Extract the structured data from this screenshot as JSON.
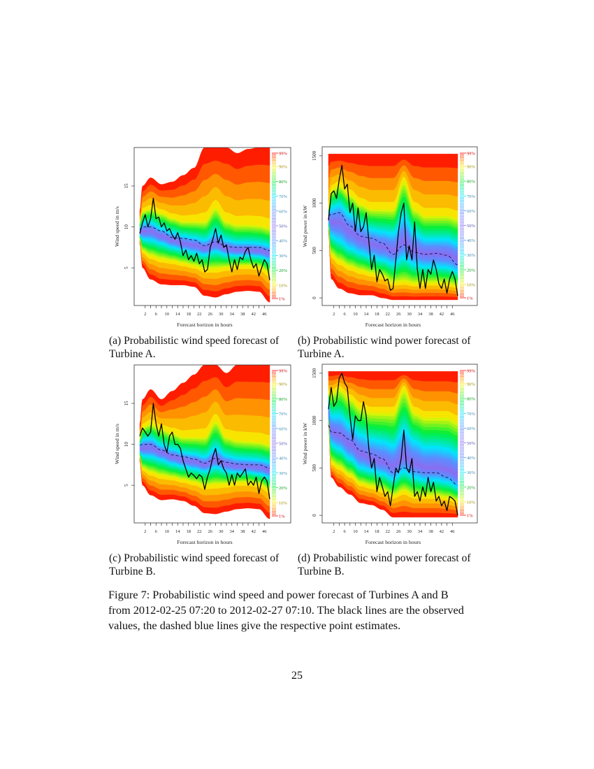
{
  "subcaptions": [
    {
      "line1": "(a) Probabilistic wind speed forecast of",
      "line2": "Turbine A."
    },
    {
      "line1": "(b) Probabilistic wind power forecast of",
      "line2": "Turbine A."
    },
    {
      "line1": "(c) Probabilistic wind speed forecast of",
      "line2": "Turbine B."
    },
    {
      "line1": "(d) Probabilistic wind power forecast of",
      "line2": "Turbine B."
    }
  ],
  "figure_caption": {
    "line1": "Figure 7: Probabilistic wind speed and power forecast of Turbines A and B",
    "line2": "from 2012-02-25 07:20 to 2012-02-27 07:10. The black lines are the observed",
    "line3": "values, the dashed blue lines give the respective point estimates."
  },
  "page_number": "25",
  "colors": {
    "observed": "#000000",
    "point_estimate": "#1a1a55",
    "outer_quantile": "#ff0000",
    "median_quantile": "#8a6cf0"
  },
  "chart_data": [
    {
      "type": "area",
      "xlabel": "Forecast horizon in hours",
      "ylabel": "Wind speed in m/s",
      "xlim": [
        0,
        48
      ],
      "ylim": [
        0.4,
        19.7
      ],
      "xtick_labels": [
        "2",
        "6",
        "10",
        "14",
        "18",
        "22",
        "26",
        "30",
        "34",
        "38",
        "42",
        "46"
      ],
      "ytick_labels": [
        "5",
        "10",
        "15"
      ],
      "legend_labels": [
        "99%",
        "90%",
        "80%",
        "70%",
        "60%",
        "50%",
        "40%",
        "30%",
        "20%",
        "10%",
        "1%"
      ],
      "quantile_levels": [
        0.01,
        0.1,
        0.3,
        0.5,
        0.7,
        0.9,
        0.99
      ],
      "quantile_x": [
        0,
        1,
        4,
        8,
        12,
        16,
        20,
        24,
        28,
        32,
        36,
        40,
        44,
        48
      ],
      "quantiles": [
        [
          8.0,
          5.0,
          3.6,
          3.0,
          2.9,
          2.9,
          2.7,
          1.6,
          1.4,
          1.8,
          2.1,
          2.2,
          2.1,
          0.8
        ],
        [
          8.6,
          7.0,
          6.4,
          6.0,
          5.8,
          5.5,
          5.2,
          4.8,
          4.8,
          5.0,
          5.2,
          5.2,
          5.1,
          4.3
        ],
        [
          9.0,
          8.5,
          8.4,
          8.0,
          7.5,
          7.2,
          6.9,
          6.6,
          7.0,
          6.6,
          6.5,
          6.5,
          6.4,
          6.0
        ],
        [
          9.3,
          9.5,
          9.5,
          8.9,
          8.4,
          8.0,
          7.8,
          7.4,
          7.9,
          7.4,
          7.2,
          7.2,
          7.1,
          6.8
        ],
        [
          9.8,
          10.5,
          10.5,
          9.8,
          9.3,
          8.9,
          8.7,
          8.4,
          9.2,
          8.4,
          8.1,
          8.1,
          8.0,
          7.7
        ],
        [
          10.6,
          12.0,
          12.3,
          11.8,
          11.2,
          10.8,
          10.8,
          10.8,
          12.5,
          10.8,
          10.4,
          10.4,
          10.3,
          10.0
        ],
        [
          12.0,
          15.0,
          16.0,
          15.2,
          15.5,
          16.3,
          17.2,
          19.7,
          19.7,
          19.7,
          19.0,
          19.5,
          19.7,
          19.7
        ]
      ],
      "point_estimate": [
        9.7,
        10.0,
        10.0,
        9.5,
        8.7,
        8.6,
        8.4,
        7.7,
        8.2,
        7.6,
        7.5,
        7.5,
        7.5,
        7.1
      ],
      "observed": [
        9.2,
        10.5,
        11.5,
        10,
        11,
        13.5,
        11,
        11.2,
        10,
        10.5,
        9.5,
        9.8,
        9,
        8.5,
        9.3,
        8.2,
        6.5,
        7.2,
        6.0,
        6.5,
        5.8,
        6.8,
        5.5,
        6.0,
        4.5,
        4.8,
        7.5,
        8.5,
        9.8,
        8.0,
        9.0,
        7.5,
        7.8,
        6.0,
        4.5,
        6.0,
        4.8,
        6.3,
        6.0,
        7.0,
        7.5,
        6.0,
        5.0,
        5.5,
        4.0,
        5.0,
        6.0,
        5.5,
        3.5
      ]
    },
    {
      "type": "area",
      "xlabel": "Forecast horizon in hours",
      "ylabel": "Wind power in kW",
      "xlim": [
        0,
        48
      ],
      "ylim": [
        -80,
        1595
      ],
      "xtick_labels": [
        "2",
        "6",
        "10",
        "14",
        "18",
        "22",
        "26",
        "30",
        "34",
        "38",
        "42",
        "46"
      ],
      "ytick_labels": [
        "0",
        "500",
        "1000",
        "1500"
      ],
      "legend_labels": [
        "99%",
        "90%",
        "80%",
        "70%",
        "60%",
        "50%",
        "40%",
        "30%",
        "20%",
        "10%",
        "1%"
      ],
      "quantile_levels": [
        0.01,
        0.1,
        0.3,
        0.5,
        0.7,
        0.9,
        0.99
      ],
      "quantile_x": [
        0,
        1,
        4,
        8,
        12,
        16,
        20,
        24,
        28,
        32,
        36,
        40,
        44,
        48
      ],
      "quantiles": [
        [
          700,
          200,
          100,
          50,
          30,
          30,
          0,
          -20,
          -20,
          -20,
          -20,
          -20,
          -20,
          -20
        ],
        [
          750,
          450,
          380,
          320,
          280,
          250,
          220,
          150,
          160,
          140,
          150,
          150,
          140,
          120
        ],
        [
          800,
          650,
          600,
          520,
          470,
          430,
          400,
          360,
          420,
          350,
          330,
          330,
          320,
          280
        ],
        [
          850,
          800,
          800,
          700,
          620,
          570,
          540,
          500,
          600,
          500,
          470,
          470,
          460,
          420
        ],
        [
          900,
          950,
          980,
          880,
          780,
          720,
          700,
          680,
          850,
          680,
          620,
          620,
          620,
          580
        ],
        [
          950,
          1150,
          1200,
          1100,
          1000,
          950,
          950,
          950,
          1250,
          950,
          880,
          880,
          880,
          850
        ],
        [
          1520,
          1520,
          1520,
          1520,
          1520,
          1520,
          1520,
          1520,
          1520,
          1520,
          1520,
          1520,
          1520,
          1520
        ]
      ],
      "point_estimate": [
        870,
        880,
        900,
        760,
        650,
        630,
        580,
        460,
        560,
        480,
        460,
        470,
        450,
        350
      ],
      "observed": [
        820,
        1100,
        1130,
        1050,
        1250,
        1400,
        1150,
        1200,
        900,
        1000,
        700,
        950,
        700,
        750,
        900,
        600,
        300,
        450,
        170,
        300,
        250,
        180,
        200,
        80,
        100,
        400,
        700,
        900,
        1000,
        400,
        550,
        400,
        800,
        300,
        100,
        300,
        100,
        300,
        250,
        400,
        300,
        150,
        100,
        200,
        50,
        200,
        280,
        200,
        20
      ]
    },
    {
      "type": "area",
      "xlabel": "Forecast horizon in hours",
      "ylabel": "Wind speed in m/s",
      "xlim": [
        0,
        48
      ],
      "ylim": [
        0.4,
        19.7
      ],
      "xtick_labels": [
        "2",
        "6",
        "10",
        "14",
        "18",
        "22",
        "26",
        "30",
        "34",
        "38",
        "42",
        "46"
      ],
      "ytick_labels": [
        "5",
        "10",
        "15"
      ],
      "legend_labels": [
        "99%",
        "90%",
        "80%",
        "70%",
        "60%",
        "50%",
        "40%",
        "30%",
        "20%",
        "10%",
        "1%"
      ],
      "quantile_levels": [
        0.01,
        0.1,
        0.3,
        0.5,
        0.7,
        0.9,
        0.99
      ],
      "quantile_x": [
        0,
        1,
        4,
        8,
        12,
        16,
        20,
        24,
        28,
        32,
        36,
        40,
        44,
        48
      ],
      "quantiles": [
        [
          8.0,
          5.0,
          3.8,
          3.2,
          3.3,
          3.1,
          2.5,
          1.6,
          1.5,
          1.8,
          2.1,
          2.2,
          2.1,
          0.9
        ],
        [
          8.6,
          7.0,
          6.5,
          6.1,
          5.9,
          5.6,
          5.3,
          4.9,
          5.0,
          5.1,
          5.3,
          5.3,
          5.1,
          4.4
        ],
        [
          9.1,
          8.6,
          8.5,
          8.1,
          7.6,
          7.3,
          7.0,
          6.7,
          7.2,
          6.7,
          6.6,
          6.6,
          6.4,
          6.0
        ],
        [
          9.4,
          9.6,
          9.6,
          9.0,
          8.5,
          8.1,
          7.9,
          7.5,
          8.1,
          7.6,
          7.3,
          7.3,
          7.2,
          6.9
        ],
        [
          9.9,
          10.6,
          10.7,
          9.9,
          9.4,
          9.0,
          8.8,
          8.5,
          9.5,
          8.6,
          8.3,
          8.2,
          8.1,
          7.8
        ],
        [
          10.7,
          12.2,
          12.6,
          12.0,
          11.5,
          11.0,
          11.0,
          11.0,
          13.0,
          11.0,
          10.6,
          10.5,
          10.4,
          10.1
        ],
        [
          12.5,
          15.5,
          16.7,
          15.5,
          16.5,
          17.5,
          18.5,
          19.7,
          19.7,
          18.7,
          19.7,
          19.7,
          19.7,
          19.7
        ]
      ],
      "point_estimate": [
        9.9,
        10.0,
        10.0,
        9.3,
        8.7,
        8.5,
        8.2,
        7.7,
        8.3,
        7.8,
        7.6,
        7.5,
        7.5,
        7.1
      ],
      "observed": [
        11,
        12,
        11.5,
        11,
        11.5,
        15,
        12.5,
        11,
        12.5,
        10,
        9,
        11,
        11.5,
        10,
        10,
        9.5,
        8,
        7,
        6,
        6.5,
        6.2,
        5.8,
        6.3,
        6.0,
        4.5,
        6.0,
        7.0,
        8.5,
        9.5,
        7.5,
        8.0,
        7.0,
        6.5,
        5.0,
        6.3,
        5.0,
        6.5,
        6.0,
        6.5,
        7.0,
        5.0,
        5.5,
        5.0,
        6.0,
        4.0,
        5.5,
        6.0,
        5.5,
        3.3
      ]
    },
    {
      "type": "area",
      "xlabel": "Forecast horizon in hours",
      "ylabel": "Wind power in kW",
      "xlim": [
        0,
        48
      ],
      "ylim": [
        -80,
        1595
      ],
      "xtick_labels": [
        "2",
        "6",
        "10",
        "14",
        "18",
        "22",
        "26",
        "30",
        "34",
        "38",
        "42",
        "46"
      ],
      "ytick_labels": [
        "0",
        "500",
        "1000",
        "1500"
      ],
      "legend_labels": [
        "99%",
        "90%",
        "80%",
        "70%",
        "60%",
        "50%",
        "40%",
        "30%",
        "20%",
        "10%",
        "1%"
      ],
      "quantile_levels": [
        0.01,
        0.1,
        0.3,
        0.5,
        0.7,
        0.9,
        0.99
      ],
      "quantile_x": [
        0,
        1,
        4,
        8,
        12,
        16,
        20,
        24,
        28,
        32,
        36,
        40,
        44,
        48
      ],
      "quantiles": [
        [
          950,
          400,
          300,
          220,
          130,
          110,
          60,
          -20,
          -20,
          -20,
          -20,
          -20,
          -20,
          -20
        ],
        [
          1000,
          550,
          500,
          420,
          330,
          300,
          260,
          200,
          250,
          200,
          200,
          200,
          180,
          150
        ],
        [
          1050,
          750,
          700,
          600,
          500,
          470,
          440,
          380,
          460,
          400,
          370,
          370,
          350,
          300
        ],
        [
          1100,
          880,
          850,
          750,
          650,
          600,
          560,
          520,
          620,
          540,
          500,
          500,
          480,
          430
        ],
        [
          1200,
          1050,
          1050,
          950,
          850,
          800,
          780,
          740,
          900,
          780,
          720,
          720,
          700,
          650
        ],
        [
          1300,
          1300,
          1350,
          1250,
          1150,
          1100,
          1100,
          1100,
          1350,
          1100,
          1050,
          1050,
          1050,
          1000
        ],
        [
          1520,
          1520,
          1520,
          1520,
          1520,
          1520,
          1520,
          1520,
          1520,
          1520,
          1520,
          1520,
          1520,
          1520
        ]
      ],
      "point_estimate": [
        950,
        880,
        870,
        800,
        680,
        650,
        600,
        450,
        500,
        460,
        450,
        450,
        400,
        320
      ],
      "observed": [
        1120,
        1350,
        1150,
        1200,
        1450,
        1500,
        1400,
        1350,
        1050,
        800,
        1050,
        1000,
        1000,
        1200,
        1050,
        700,
        500,
        600,
        250,
        400,
        300,
        200,
        250,
        100,
        300,
        500,
        450,
        600,
        900,
        500,
        450,
        600,
        200,
        250,
        150,
        300,
        200,
        400,
        250,
        350,
        150,
        200,
        100,
        150,
        50,
        200,
        180,
        150,
        0
      ]
    }
  ]
}
